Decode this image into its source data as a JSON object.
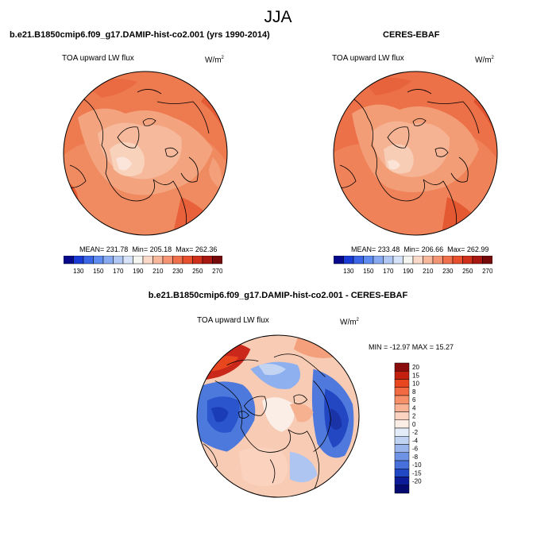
{
  "season": "JJA",
  "panels": [
    {
      "id": "model",
      "title": "b.e21.B1850cmip6.f09_g17.DAMIP-hist-co2.001 (yrs 1990-2014)",
      "variable": "TOA upward LW flux",
      "units": "W/m",
      "units_sup": "2",
      "mean_label": "MEAN= 231.78",
      "min_label": "Min= 205.18",
      "max_label": "Max= 262.36",
      "stats": {
        "mean": 231.78,
        "min": 205.18,
        "max": 262.36
      }
    },
    {
      "id": "obs",
      "title": "CERES-EBAF",
      "variable": "TOA upward LW flux",
      "units": "W/m",
      "units_sup": "2",
      "mean_label": "MEAN= 233.48",
      "min_label": "Min= 206.66",
      "max_label": "Max= 262.99",
      "stats": {
        "mean": 233.48,
        "min": 206.66,
        "max": 262.99
      }
    }
  ],
  "diff_panel": {
    "title": "b.e21.B1850cmip6.f09_g17.DAMIP-hist-co2.001 - CERES-EBAF",
    "variable": "TOA upward LW flux",
    "units": "W/m",
    "units_sup": "2",
    "minmax_label": "MIN = -12.97 MAX =  15.27",
    "stats": {
      "min": -12.97,
      "max": 15.27
    }
  },
  "colorbar_abs": {
    "tick_labels": [
      "130",
      "150",
      "170",
      "190",
      "210",
      "230",
      "250",
      "270"
    ],
    "colors": [
      "#08088c",
      "#1a3ad6",
      "#3b66e8",
      "#5f8cf0",
      "#88aaf2",
      "#b1c8f5",
      "#d7e3f8",
      "#f5f5f2",
      "#fbd9c8",
      "#f8b89c",
      "#f59573",
      "#f0704c",
      "#e84f2c",
      "#d0301a",
      "#a81710",
      "#760a0a"
    ]
  },
  "colorbar_diff": {
    "tick_labels": [
      "20",
      "15",
      "10",
      "8",
      "6",
      "4",
      "2",
      "0",
      "-2",
      "-4",
      "-6",
      "-8",
      "-10",
      "-15",
      "-20"
    ],
    "colors": [
      "#8a0c0c",
      "#c4200f",
      "#e8461f",
      "#f26a42",
      "#f79068",
      "#fab294",
      "#fcd3c0",
      "#fbeee6",
      "#e3ecf8",
      "#c0d3f2",
      "#99b5ec",
      "#6e92e4",
      "#4770dc",
      "#2148c4",
      "#0c1c98",
      "#050a70"
    ]
  }
}
